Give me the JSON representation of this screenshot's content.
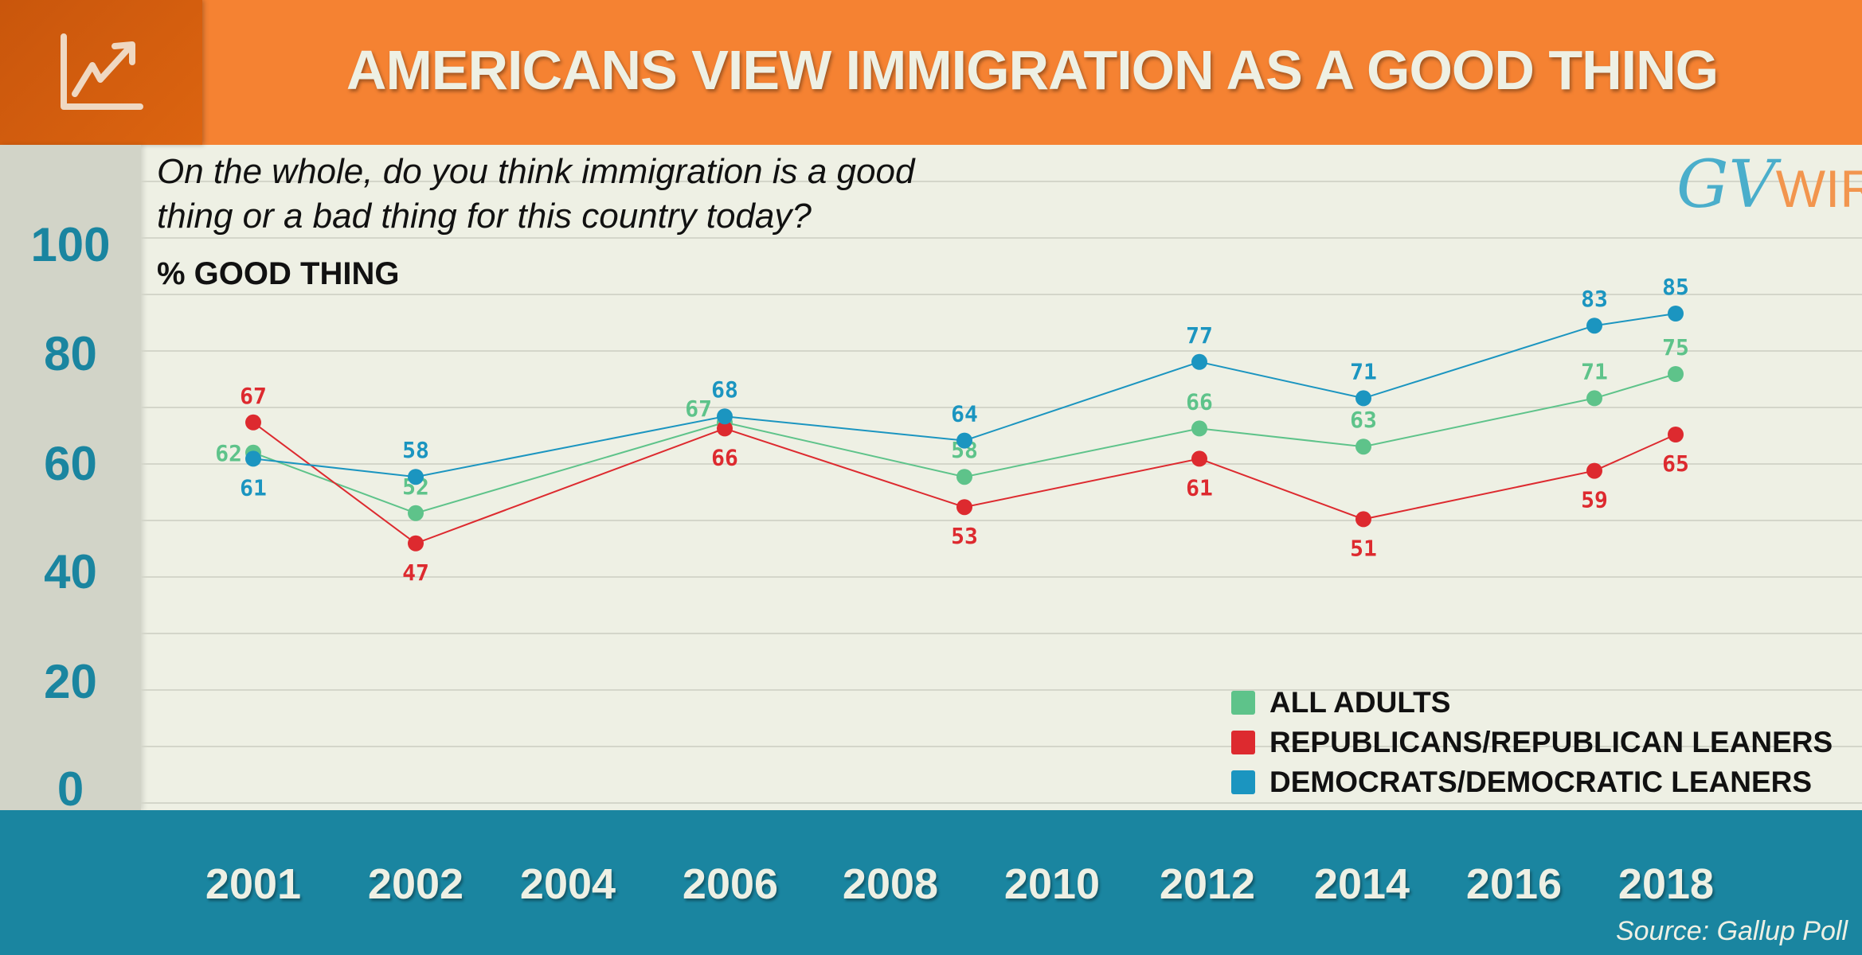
{
  "header": {
    "title": "AMERICANS VIEW IMMIGRATION AS A GOOD THING",
    "icon": "trending-up-chart-icon"
  },
  "question": {
    "line1": "On the whole, do you think immigration is a good",
    "line2": "thing or a bad thing for this country today?"
  },
  "unit_label": "% GOOD THING",
  "logo": {
    "part1": "GV",
    "part2": "WIRE"
  },
  "source": "Source: Gallup Poll",
  "colors": {
    "header": "#f58232",
    "icon_box": "#d95f0f",
    "footer": "#1a85a0",
    "background": "#eef0e4",
    "axis_strip": "#d2d4c8"
  },
  "chart_data": {
    "type": "line",
    "title": "AMERICANS VIEW IMMIGRATION AS A GOOD THING",
    "ylabel": "% GOOD THING",
    "ylim": [
      0,
      100
    ],
    "yticks": [
      "100",
      "80",
      "60",
      "40",
      "20",
      "0"
    ],
    "xtick_labels": [
      "2001",
      "2002",
      "2004",
      "2006",
      "2008",
      "2010",
      "2012",
      "2014",
      "2016",
      "2018"
    ],
    "grid": true,
    "legend_position": "bottom-right",
    "series": [
      {
        "name": "ALL ADULTS",
        "color": "#5ec38a",
        "values": [
          62,
          52,
          67,
          58,
          66,
          63,
          71,
          75
        ]
      },
      {
        "name": "REPUBLICANS/REPUBLICAN LEANERS",
        "color": "#dd2a2f",
        "values": [
          67,
          47,
          66,
          53,
          61,
          51,
          59,
          65
        ]
      },
      {
        "name": "DEMOCRATS/DEMOCRATIC LEANERS",
        "color": "#1b95c0",
        "values": [
          61,
          58,
          68,
          64,
          77,
          71,
          83,
          85
        ]
      }
    ]
  }
}
